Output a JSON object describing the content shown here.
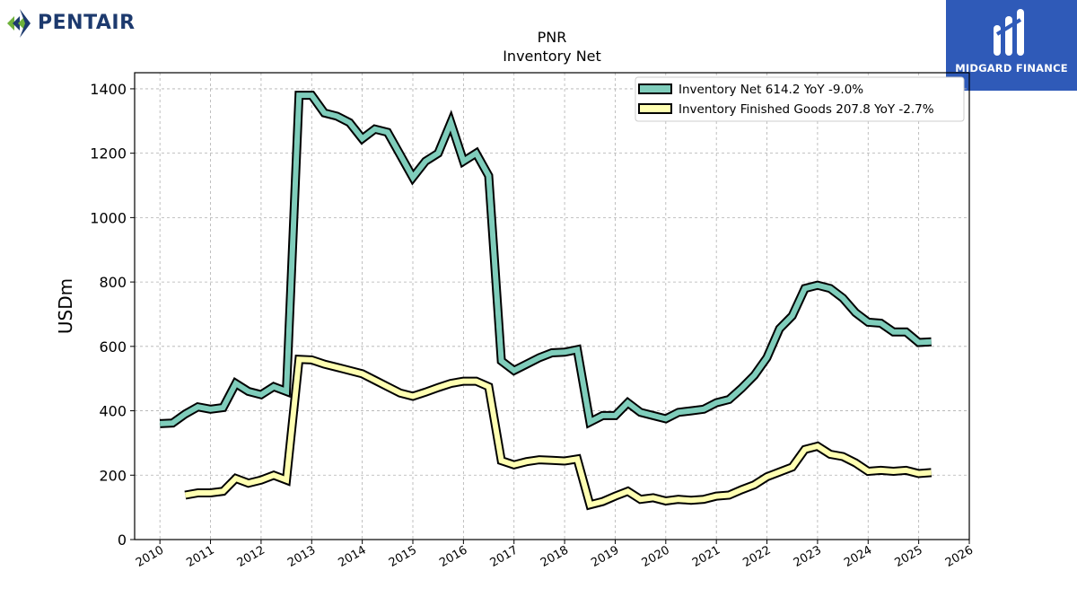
{
  "branding": {
    "left_logo": {
      "text": "PENTAIR",
      "icon": "pentair-diamond-icon",
      "color": "#1d3a6e"
    },
    "right_logo": {
      "text": "MIDGARD FINANCE",
      "icon": "midgard-m-icon",
      "background": "#2f5ab8"
    }
  },
  "chart_data": {
    "type": "line",
    "title": "PNR",
    "subtitle": "Inventory Net",
    "xlabel": "",
    "ylabel": "USDm",
    "xlim": [
      2009.5,
      2026.0
    ],
    "ylim": [
      0,
      1450
    ],
    "x_ticks": [
      2010,
      2011,
      2012,
      2013,
      2014,
      2015,
      2016,
      2017,
      2018,
      2019,
      2020,
      2021,
      2022,
      2023,
      2024,
      2025,
      2026
    ],
    "x_tick_labels": [
      "2010",
      "2011",
      "2012",
      "2013",
      "2014",
      "2015",
      "2016",
      "2017",
      "2018",
      "2019",
      "2020",
      "2021",
      "2022",
      "2023",
      "2024",
      "2025",
      "2026"
    ],
    "y_ticks": [
      0,
      200,
      400,
      600,
      800,
      1000,
      1200,
      1400
    ],
    "y_tick_labels": [
      "0",
      "200",
      "400",
      "600",
      "800",
      "1000",
      "1200",
      "1400"
    ],
    "grid": true,
    "legend_position": "top-right",
    "series": [
      {
        "name": "Inventory Net",
        "legend_label": "Inventory Net  614.2 YoY -9.0%",
        "color": "#7fcdbb",
        "x": [
          2010.0,
          2010.25,
          2010.5,
          2010.75,
          2011.0,
          2011.25,
          2011.5,
          2011.75,
          2012.0,
          2012.25,
          2012.5,
          2012.75,
          2013.0,
          2013.25,
          2013.5,
          2013.75,
          2014.0,
          2014.25,
          2014.5,
          2014.75,
          2015.0,
          2015.25,
          2015.5,
          2015.75,
          2016.0,
          2016.25,
          2016.5,
          2016.75,
          2017.0,
          2017.25,
          2017.5,
          2017.75,
          2018.0,
          2018.25,
          2018.5,
          2018.75,
          2019.0,
          2019.25,
          2019.5,
          2019.75,
          2020.0,
          2020.25,
          2020.5,
          2020.75,
          2021.0,
          2021.25,
          2021.5,
          2021.75,
          2022.0,
          2022.25,
          2022.5,
          2022.75,
          2023.0,
          2023.25,
          2023.5,
          2023.75,
          2024.0,
          2024.25,
          2024.5,
          2024.75,
          2025.0,
          2025.25
        ],
        "values": [
          360,
          362,
          390,
          412,
          405,
          410,
          485,
          460,
          450,
          475,
          460,
          1380,
          1380,
          1325,
          1315,
          1295,
          1245,
          1275,
          1265,
          1195,
          1125,
          1175,
          1200,
          1295,
          1175,
          1200,
          1130,
          555,
          525,
          545,
          565,
          580,
          582,
          590,
          365,
          385,
          385,
          425,
          395,
          385,
          375,
          395,
          400,
          405,
          425,
          435,
          470,
          510,
          565,
          655,
          695,
          780,
          790,
          780,
          750,
          705,
          675,
          672,
          645,
          645,
          612,
          614
        ]
      },
      {
        "name": "Inventory Finished Goods",
        "legend_label": "Inventory Finished Goods  207.8 YoY -2.7%",
        "color": "#ffffb2",
        "x": [
          2010.5,
          2010.75,
          2011.0,
          2011.25,
          2011.5,
          2011.75,
          2012.0,
          2012.25,
          2012.5,
          2012.75,
          2013.0,
          2013.25,
          2013.5,
          2013.75,
          2014.0,
          2014.25,
          2014.5,
          2014.75,
          2015.0,
          2015.25,
          2015.5,
          2015.75,
          2016.0,
          2016.25,
          2016.5,
          2016.75,
          2017.0,
          2017.25,
          2017.5,
          2017.75,
          2018.0,
          2018.25,
          2018.5,
          2018.75,
          2019.0,
          2019.25,
          2019.5,
          2019.75,
          2020.0,
          2020.25,
          2020.5,
          2020.75,
          2021.0,
          2021.25,
          2021.5,
          2021.75,
          2022.0,
          2022.25,
          2022.5,
          2022.75,
          2023.0,
          2023.25,
          2023.5,
          2023.75,
          2024.0,
          2024.25,
          2024.5,
          2024.75,
          2025.0,
          2025.25
        ],
        "values": [
          138,
          145,
          145,
          150,
          190,
          175,
          185,
          200,
          185,
          560,
          558,
          545,
          535,
          525,
          515,
          495,
          475,
          455,
          445,
          458,
          472,
          485,
          492,
          492,
          475,
          245,
          232,
          242,
          248,
          246,
          244,
          250,
          108,
          118,
          135,
          150,
          125,
          130,
          120,
          125,
          122,
          125,
          135,
          138,
          155,
          170,
          195,
          210,
          225,
          280,
          290,
          265,
          258,
          238,
          212,
          215,
          212,
          215,
          205,
          208
        ]
      }
    ]
  }
}
